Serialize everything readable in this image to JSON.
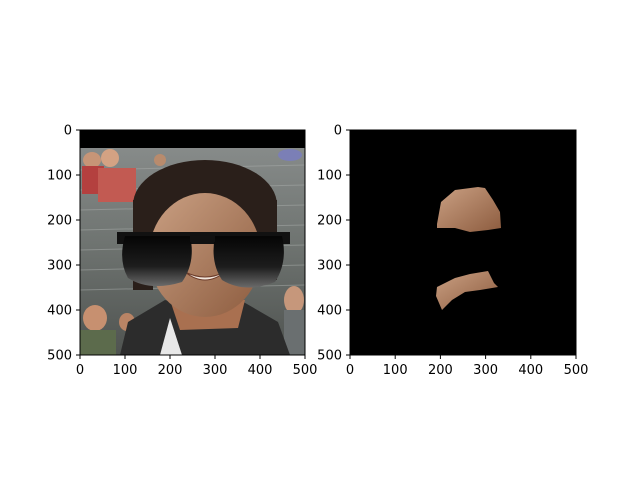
{
  "chart_data": [
    {
      "type": "image",
      "title": "",
      "xlabel": "",
      "ylabel": "",
      "xlim": [
        0,
        500
      ],
      "ylim": [
        500,
        0
      ],
      "xticks": [
        0,
        100,
        200,
        300,
        400,
        500
      ],
      "yticks": [
        0,
        100,
        200,
        300,
        400,
        500
      ],
      "xtick_labels": [
        "0",
        "100",
        "200",
        "300",
        "400",
        "500"
      ],
      "ytick_labels": [
        "0",
        "100",
        "200",
        "300",
        "400",
        "500"
      ],
      "content": "photo of a smiling man with black sunglasses overlaid; black band at top",
      "colors": {
        "background": "#000000",
        "sunglasses": "#111111",
        "skin": "#c99470",
        "hair": "#2a1f1a",
        "jacket": "#2a2a2a"
      }
    },
    {
      "type": "image",
      "title": "",
      "xlabel": "",
      "ylabel": "",
      "xlim": [
        0,
        500
      ],
      "ylim": [
        500,
        0
      ],
      "xticks": [
        0,
        100,
        200,
        300,
        400,
        500
      ],
      "yticks": [
        0,
        100,
        200,
        300,
        400,
        500
      ],
      "xtick_labels": [
        "0",
        "100",
        "200",
        "300",
        "400",
        "500"
      ],
      "ytick_labels": [
        "0",
        "100",
        "200",
        "300",
        "400",
        "500"
      ],
      "content": "black mask image showing only two skin regions: forehead/eyebrow area and mouth/chin area",
      "colors": {
        "background": "#000000",
        "skin": "#b27b5a"
      }
    }
  ]
}
